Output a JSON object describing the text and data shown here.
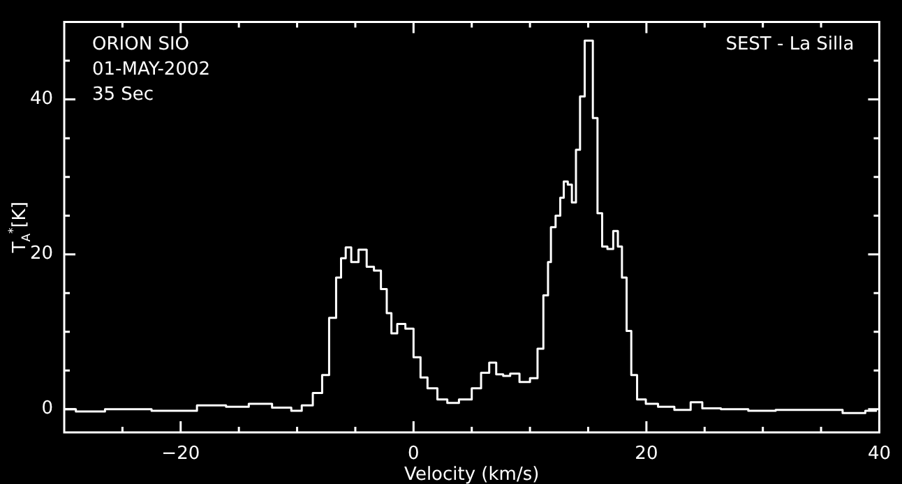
{
  "chart_data": {
    "type": "step",
    "xlabel": "Velocity (km/s)",
    "ylabel": "T$_{A}$$^{*}$[K]",
    "annotations": [
      "ORION SIO",
      "01-MAY-2002",
      "35 Sec",
      "SEST - La Silla"
    ],
    "x": [
      -30,
      -28,
      -25,
      -20,
      -17.2,
      -15,
      -13.3,
      -11,
      -10,
      -9.2,
      -8.1,
      -7.6,
      -6.9,
      -6.4,
      -6.05,
      -5.6,
      -5.1,
      -4.35,
      -3.7,
      -3.1,
      -2.5,
      -2.1,
      -1.7,
      -1.1,
      -0.3,
      0.3,
      0.9,
      1.5,
      2.6,
      3.2,
      4.6,
      5.4,
      6.2,
      6.8,
      7.4,
      8.0,
      8.6,
      9.6,
      10.4,
      10.9,
      11.4,
      11.7,
      11.9,
      12.5,
      12.7,
      13.1,
      13.4,
      13.8,
      14.1,
      14.5,
      14.9,
      15.2,
      15.6,
      16.0,
      16.4,
      16.9,
      17.4,
      17.7,
      18.1,
      18.5,
      18.9,
      19.5,
      20.4,
      21.6,
      23.2,
      24.4,
      25.2,
      27.6,
      29.9,
      32.3,
      35.9,
      37.8,
      39.8
    ],
    "series": [
      {
        "color": "#ffffff",
        "values": [
          0,
          -0.3,
          0,
          -0.2,
          0.5,
          0.3,
          0.7,
          0.2,
          -0.2,
          0.5,
          2.1,
          4.4,
          11.8,
          17,
          19.5,
          20.9,
          19,
          20.6,
          18.4,
          17.9,
          15.5,
          12.4,
          9.8,
          11,
          10.4,
          6.7,
          4.1,
          2.7,
          1.25,
          0.8,
          1.25,
          2.7,
          4.7,
          6.0,
          4.5,
          4.3,
          4.6,
          3.5,
          4.0,
          7.8,
          14.7,
          19,
          23.5,
          25,
          27.3,
          29.4,
          29,
          26.7,
          33.5,
          40.4,
          47.6,
          47.6,
          37.6,
          25.3,
          21,
          20.7,
          23,
          21,
          17,
          10.1,
          4.4,
          1.25,
          0.7,
          0.3,
          -0.1,
          0.9,
          0.1,
          0,
          -0.2,
          -0.1,
          -0.1,
          -0.5,
          -0.2
        ]
      }
    ],
    "xlim": [
      -30,
      40
    ],
    "xticks": [
      {
        "value": -25,
        "label": null
      },
      -20,
      {
        "value": -15,
        "label": null
      },
      {
        "value": -10,
        "label": null
      },
      {
        "value": -5,
        "label": null
      },
      0,
      {
        "value": 5,
        "label": null
      },
      {
        "value": 10,
        "label": null
      },
      {
        "value": 15,
        "label": null
      },
      20,
      {
        "value": 25,
        "label": null
      },
      {
        "value": 30,
        "label": null
      },
      {
        "value": 35,
        "label": null
      },
      40
    ],
    "ylim": [
      -3,
      50
    ],
    "yticks": [
      0,
      {
        "value": 5,
        "label": null
      },
      {
        "value": 10,
        "label": null
      },
      {
        "value": 15,
        "label": null
      },
      20,
      {
        "value": 25,
        "label": null
      },
      {
        "value": 30,
        "label": null
      },
      {
        "value": 35,
        "label": null
      },
      40,
      {
        "value": 45,
        "label": null
      }
    ],
    "grid": false,
    "legend": false,
    "marker": "none",
    "line_style": "solid"
  }
}
